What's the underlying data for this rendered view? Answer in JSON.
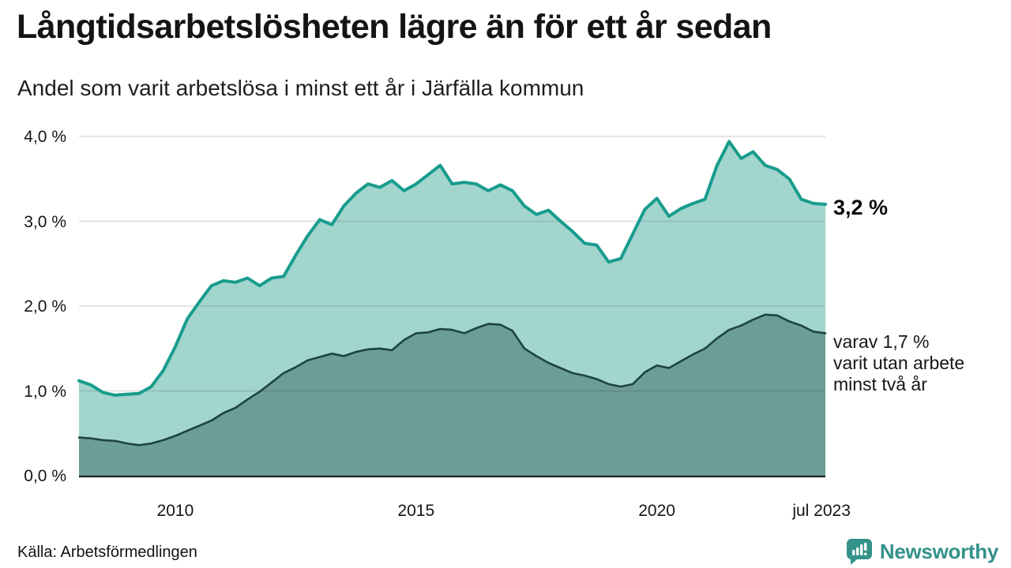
{
  "header": {
    "title": "Långtidsarbetslösheten lägre än för ett år sedan",
    "subtitle": "Andel som varit arbetslösa i minst ett år i Järfälla kommun"
  },
  "annotations": {
    "latest_total": "3,2 %",
    "two_year_lines": [
      "varav 1,7 %",
      "varit utan arbete",
      "minst två år"
    ]
  },
  "footer": {
    "source": "Källa: Arbetsförmedlingen"
  },
  "branding": {
    "name": "Newsworthy",
    "color": "#33928a",
    "icon": "speech-bubble-bar-chart-exclamation"
  },
  "chart_data": {
    "type": "area",
    "title": "Långtidsarbetslösheten lägre än för ett år sedan",
    "subtitle": "Andel som varit arbetslösa i minst ett år i Järfälla kommun",
    "xlabel": "",
    "ylabel": "",
    "x_range": [
      2008.0,
      2023.5
    ],
    "y_range": [
      0,
      4
    ],
    "grid": true,
    "gridline_color": "#d9d9d9",
    "y_ticks": [
      {
        "label": "0,0 %",
        "value": 0
      },
      {
        "label": "1,0 %",
        "value": 1
      },
      {
        "label": "2,0 %",
        "value": 2
      },
      {
        "label": "3,0 %",
        "value": 3
      },
      {
        "label": "4,0 %",
        "value": 4
      }
    ],
    "x_ticks": [
      {
        "label": "2010",
        "value": 2010
      },
      {
        "label": "2015",
        "value": 2015
      },
      {
        "label": "2020",
        "value": 2020
      },
      {
        "label": "jul 2023",
        "value": 2023.42
      }
    ],
    "series": [
      {
        "name": "Andel arbetslösa minst ett år",
        "color": "#189c8d",
        "fill": "#a2d5ce",
        "end_label": "3,2 %",
        "points": [
          [
            2008.0,
            1.12
          ],
          [
            2008.25,
            1.07
          ],
          [
            2008.5,
            0.98
          ],
          [
            2008.75,
            0.95
          ],
          [
            2009.0,
            0.96
          ],
          [
            2009.25,
            0.97
          ],
          [
            2009.5,
            1.05
          ],
          [
            2009.75,
            1.24
          ],
          [
            2010.0,
            1.52
          ],
          [
            2010.25,
            1.85
          ],
          [
            2010.5,
            2.05
          ],
          [
            2010.75,
            2.24
          ],
          [
            2011.0,
            2.3
          ],
          [
            2011.25,
            2.28
          ],
          [
            2011.5,
            2.33
          ],
          [
            2011.75,
            2.24
          ],
          [
            2012.0,
            2.33
          ],
          [
            2012.25,
            2.35
          ],
          [
            2012.5,
            2.6
          ],
          [
            2012.75,
            2.83
          ],
          [
            2013.0,
            3.02
          ],
          [
            2013.25,
            2.96
          ],
          [
            2013.5,
            3.18
          ],
          [
            2013.75,
            3.33
          ],
          [
            2014.0,
            3.44
          ],
          [
            2014.25,
            3.4
          ],
          [
            2014.5,
            3.48
          ],
          [
            2014.75,
            3.36
          ],
          [
            2015.0,
            3.44
          ],
          [
            2015.25,
            3.55
          ],
          [
            2015.5,
            3.66
          ],
          [
            2015.75,
            3.44
          ],
          [
            2016.0,
            3.46
          ],
          [
            2016.25,
            3.44
          ],
          [
            2016.5,
            3.36
          ],
          [
            2016.75,
            3.43
          ],
          [
            2017.0,
            3.36
          ],
          [
            2017.25,
            3.18
          ],
          [
            2017.5,
            3.08
          ],
          [
            2017.75,
            3.13
          ],
          [
            2018.0,
            3.0
          ],
          [
            2018.25,
            2.88
          ],
          [
            2018.5,
            2.74
          ],
          [
            2018.75,
            2.72
          ],
          [
            2019.0,
            2.52
          ],
          [
            2019.25,
            2.56
          ],
          [
            2019.5,
            2.85
          ],
          [
            2019.75,
            3.14
          ],
          [
            2020.0,
            3.27
          ],
          [
            2020.25,
            3.06
          ],
          [
            2020.5,
            3.15
          ],
          [
            2020.75,
            3.21
          ],
          [
            2021.0,
            3.26
          ],
          [
            2021.25,
            3.66
          ],
          [
            2021.5,
            3.94
          ],
          [
            2021.75,
            3.74
          ],
          [
            2022.0,
            3.82
          ],
          [
            2022.25,
            3.66
          ],
          [
            2022.5,
            3.61
          ],
          [
            2022.75,
            3.5
          ],
          [
            2023.0,
            3.26
          ],
          [
            2023.25,
            3.21
          ],
          [
            2023.5,
            3.2
          ]
        ]
      },
      {
        "name": "Andel arbetslösa minst två år",
        "color": "#1f4440",
        "fill": "#6d9d97",
        "end_label": "varav 1,7 % varit utan arbete minst två år",
        "points": [
          [
            2008.0,
            0.45
          ],
          [
            2008.25,
            0.44
          ],
          [
            2008.5,
            0.42
          ],
          [
            2008.75,
            0.41
          ],
          [
            2009.0,
            0.38
          ],
          [
            2009.25,
            0.36
          ],
          [
            2009.5,
            0.38
          ],
          [
            2009.75,
            0.42
          ],
          [
            2010.0,
            0.47
          ],
          [
            2010.25,
            0.53
          ],
          [
            2010.5,
            0.59
          ],
          [
            2010.75,
            0.65
          ],
          [
            2011.0,
            0.74
          ],
          [
            2011.25,
            0.8
          ],
          [
            2011.5,
            0.9
          ],
          [
            2011.75,
            0.99
          ],
          [
            2012.0,
            1.1
          ],
          [
            2012.25,
            1.21
          ],
          [
            2012.5,
            1.28
          ],
          [
            2012.75,
            1.36
          ],
          [
            2013.0,
            1.4
          ],
          [
            2013.25,
            1.44
          ],
          [
            2013.5,
            1.41
          ],
          [
            2013.75,
            1.46
          ],
          [
            2014.0,
            1.49
          ],
          [
            2014.25,
            1.5
          ],
          [
            2014.5,
            1.48
          ],
          [
            2014.75,
            1.6
          ],
          [
            2015.0,
            1.68
          ],
          [
            2015.25,
            1.69
          ],
          [
            2015.5,
            1.73
          ],
          [
            2015.75,
            1.72
          ],
          [
            2016.0,
            1.68
          ],
          [
            2016.25,
            1.74
          ],
          [
            2016.5,
            1.79
          ],
          [
            2016.75,
            1.78
          ],
          [
            2017.0,
            1.71
          ],
          [
            2017.25,
            1.5
          ],
          [
            2017.5,
            1.41
          ],
          [
            2017.75,
            1.33
          ],
          [
            2018.0,
            1.27
          ],
          [
            2018.25,
            1.21
          ],
          [
            2018.5,
            1.18
          ],
          [
            2018.75,
            1.14
          ],
          [
            2019.0,
            1.08
          ],
          [
            2019.25,
            1.05
          ],
          [
            2019.5,
            1.08
          ],
          [
            2019.75,
            1.22
          ],
          [
            2020.0,
            1.3
          ],
          [
            2020.25,
            1.27
          ],
          [
            2020.5,
            1.35
          ],
          [
            2020.75,
            1.43
          ],
          [
            2021.0,
            1.5
          ],
          [
            2021.25,
            1.62
          ],
          [
            2021.5,
            1.72
          ],
          [
            2021.75,
            1.77
          ],
          [
            2022.0,
            1.84
          ],
          [
            2022.25,
            1.9
          ],
          [
            2022.5,
            1.89
          ],
          [
            2022.75,
            1.82
          ],
          [
            2023.0,
            1.77
          ],
          [
            2023.25,
            1.7
          ],
          [
            2023.5,
            1.68
          ]
        ]
      }
    ]
  }
}
